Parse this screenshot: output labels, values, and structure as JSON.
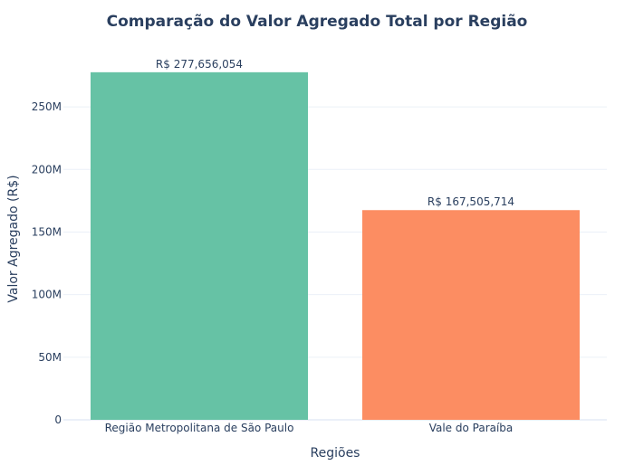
{
  "chart_data": {
    "type": "bar",
    "title": "Comparação do Valor Agregado Total por Região",
    "xlabel": "Regiões",
    "ylabel": "Valor Agregado (R$)",
    "categories": [
      "Região Metropolitana de São Paulo",
      "Vale do Paraíba"
    ],
    "values": [
      277656054,
      167505714
    ],
    "data_labels": [
      "R$ 277,656,054",
      "R$ 167,505,714"
    ],
    "colors": [
      "#66c2a5",
      "#fc8d62"
    ],
    "ylim": [
      0,
      292000000
    ],
    "yticks": [
      0,
      50000000,
      100000000,
      150000000,
      200000000,
      250000000
    ],
    "ytick_labels": [
      "0",
      "50M",
      "100M",
      "150M",
      "200M",
      "250M"
    ],
    "grid": true,
    "legend": false
  }
}
